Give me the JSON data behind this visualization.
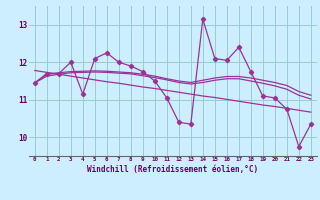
{
  "x": [
    0,
    1,
    2,
    3,
    4,
    5,
    6,
    7,
    8,
    9,
    10,
    11,
    12,
    13,
    14,
    15,
    16,
    17,
    18,
    19,
    20,
    21,
    22,
    23
  ],
  "y_main": [
    11.45,
    11.7,
    11.7,
    12.0,
    11.15,
    12.1,
    12.25,
    12.0,
    11.9,
    11.75,
    11.5,
    11.05,
    10.4,
    10.35,
    13.15,
    12.1,
    12.05,
    12.4,
    11.75,
    11.1,
    11.05,
    10.75,
    9.75,
    10.35
  ],
  "y_smooth1": [
    11.45,
    11.68,
    11.72,
    11.75,
    11.76,
    11.77,
    11.76,
    11.74,
    11.72,
    11.68,
    11.63,
    11.56,
    11.5,
    11.46,
    11.52,
    11.58,
    11.62,
    11.62,
    11.58,
    11.52,
    11.46,
    11.38,
    11.22,
    11.12
  ],
  "y_smooth2": [
    11.45,
    11.63,
    11.68,
    11.72,
    11.73,
    11.74,
    11.73,
    11.71,
    11.69,
    11.64,
    11.59,
    11.53,
    11.46,
    11.42,
    11.46,
    11.52,
    11.56,
    11.56,
    11.5,
    11.44,
    11.37,
    11.28,
    11.12,
    11.02
  ],
  "y_trend": [
    11.78,
    11.73,
    11.68,
    11.63,
    11.58,
    11.53,
    11.48,
    11.44,
    11.39,
    11.34,
    11.3,
    11.25,
    11.2,
    11.15,
    11.1,
    11.06,
    11.01,
    10.96,
    10.91,
    10.86,
    10.82,
    10.77,
    10.72,
    10.67
  ],
  "bg_color": "#cceeff",
  "grid_color": "#99cccc",
  "line_color": "#993399",
  "ylabel_ticks": [
    10,
    11,
    12,
    13
  ],
  "xlabel": "Windchill (Refroidissement éolien,°C)",
  "xlim": [
    -0.5,
    23.5
  ],
  "ylim": [
    9.5,
    13.5
  ]
}
